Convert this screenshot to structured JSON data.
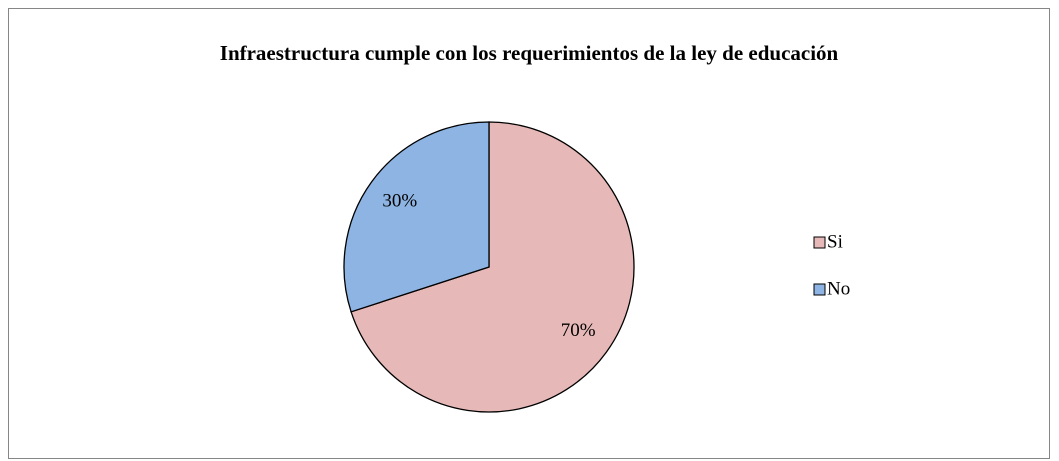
{
  "chart_data": {
    "type": "pie",
    "title": "Infraestructura cumple con los requerimientos de la ley de educación",
    "categories": [
      "Si",
      "No"
    ],
    "values": [
      70,
      30
    ],
    "value_labels": [
      "70%",
      "30%"
    ],
    "colors": [
      "#e6b9b8",
      "#8db4e2"
    ],
    "legend": "right"
  }
}
